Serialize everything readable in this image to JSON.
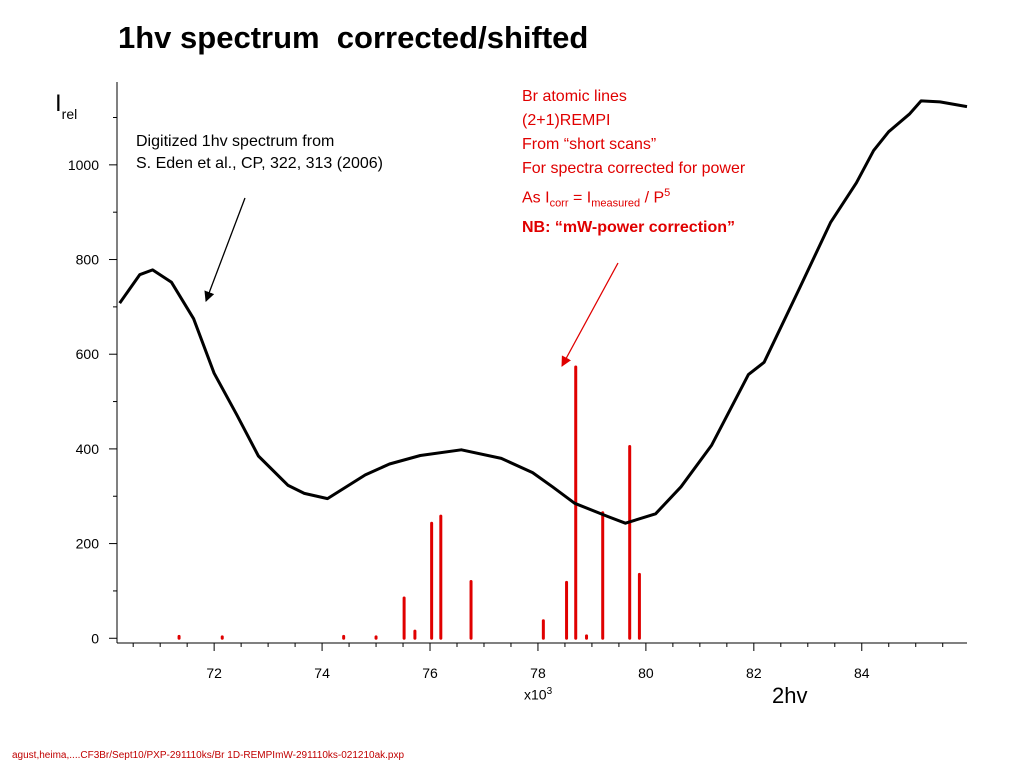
{
  "title": "1hv spectrum  corrected/shifted",
  "ylabel": {
    "main": "I",
    "sub": "rel"
  },
  "annotation_black": {
    "line1": "Digitized 1hv spectrum from",
    "line2": "S. Eden et al., CP, 322, 313 (2006)"
  },
  "annotation_red": {
    "line1": "Br atomic lines",
    "line2": "(2+1)REMPI",
    "line3": "From “short scans”",
    "line4": "For spectra corrected for power",
    "line5_prefix": "As I",
    "line5_sub1": "corr",
    "line5_mid": " = I",
    "line5_sub2": "measured",
    "line5_mid2": " / P",
    "line5_sup": "5",
    "line6": "NB: “mW-power correction”"
  },
  "x_unit": {
    "base": "x10",
    "exp": "3"
  },
  "xlabel": "2hv",
  "footer": "agust,heima,....CF3Br/Sept10/PXP-291110ks/Br 1D-REMPImW-291110ks-021210ak.pxp",
  "colors": {
    "curve": "#000000",
    "lines": "#e00000",
    "text_red": "#e00000"
  },
  "chart_data": {
    "type": "line",
    "title": "1hv spectrum  corrected/shifted",
    "xlabel": "2hv",
    "ylabel": "I rel",
    "xlim": [
      70.2,
      85.95
    ],
    "ylim": [
      -10,
      1175
    ],
    "x_ticks": [
      72,
      74,
      76,
      78,
      80,
      82,
      84
    ],
    "y_ticks": [
      0,
      200,
      400,
      600,
      800,
      1000
    ],
    "grid": false,
    "series": [
      {
        "style": "line",
        "color": "#000000",
        "x": [
          70.25,
          70.62,
          70.86,
          71.21,
          71.62,
          72.0,
          72.42,
          72.82,
          73.37,
          73.67,
          74.1,
          74.8,
          75.25,
          75.82,
          76.58,
          77.32,
          77.9,
          78.27,
          78.68,
          79.3,
          79.62,
          80.18,
          80.65,
          81.22,
          81.9,
          82.19,
          82.85,
          83.42,
          83.9,
          84.22,
          84.5,
          84.88,
          85.1,
          85.45,
          85.95
        ],
        "y": [
          708,
          768,
          778,
          752,
          675,
          560,
          472,
          385,
          323,
          306,
          295,
          345,
          368,
          386,
          398,
          380,
          350,
          320,
          285,
          257,
          243,
          263,
          320,
          408,
          557,
          583,
          740,
          878,
          962,
          1030,
          1070,
          1107,
          1135,
          1133,
          1123
        ]
      },
      {
        "style": "sticks",
        "color": "#e00000",
        "x": [
          71.35,
          72.15,
          74.4,
          75.0,
          75.52,
          75.72,
          76.03,
          76.2,
          76.76,
          78.1,
          78.53,
          78.7,
          78.9,
          79.2,
          79.7,
          79.88
        ],
        "y": [
          4,
          3,
          4,
          3,
          85,
          15,
          243,
          258,
          120,
          37,
          118,
          573,
          5,
          265,
          405,
          135
        ]
      }
    ]
  }
}
